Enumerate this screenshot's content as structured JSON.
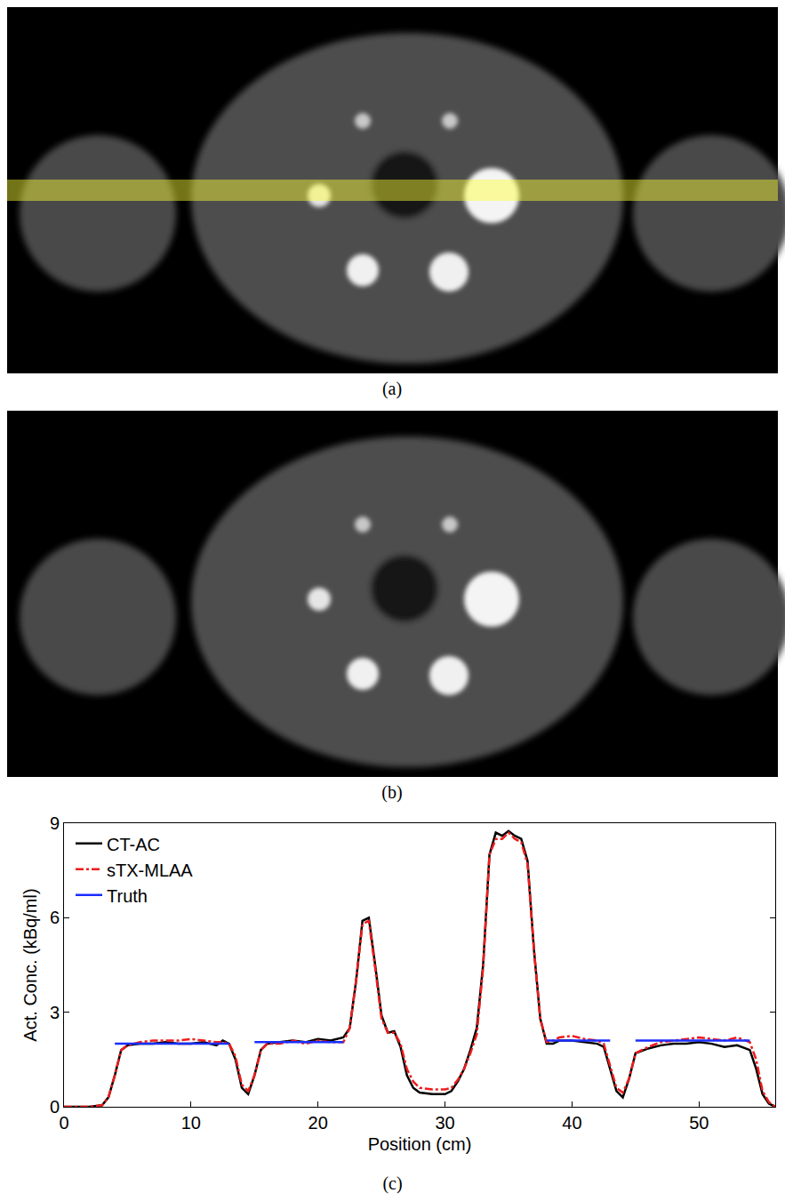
{
  "figure_labels": [
    "(a)",
    "(b)",
    "(c)"
  ],
  "chart_data": {
    "type": "line",
    "x_label": "Position (cm)",
    "y_label": "Act. Conc. (kBq/ml)",
    "xlim": [
      0,
      56
    ],
    "xticks": [
      0,
      10,
      20,
      30,
      40,
      50
    ],
    "ylim": [
      0,
      9
    ],
    "yticks": [
      0,
      3,
      6,
      9
    ],
    "grid": false,
    "legend": "upper left",
    "x": [
      0,
      1,
      2,
      3,
      3.5,
      4,
      4.5,
      5,
      6,
      7,
      8,
      9,
      10,
      11,
      12,
      12.5,
      13,
      13.5,
      14,
      14.5,
      15,
      15.5,
      16,
      17,
      18,
      19,
      20,
      21,
      22,
      22.5,
      23,
      23.5,
      24,
      24.5,
      25,
      25.5,
      26,
      26.5,
      27,
      27.5,
      28,
      29,
      30,
      30.5,
      31,
      31.5,
      32,
      32.5,
      33,
      33.5,
      34,
      34.5,
      35,
      35.5,
      36,
      36.5,
      37,
      37.5,
      38,
      38.5,
      39,
      40,
      41,
      42,
      42.5,
      43,
      43.5,
      44,
      44.5,
      45,
      46,
      47,
      48,
      49,
      50,
      51,
      52,
      53,
      54,
      54.5,
      55,
      55.5,
      56
    ],
    "series": [
      {
        "name": "CT-AC",
        "color": "#000000",
        "line_style": "solid",
        "values": [
          0,
          0,
          0,
          0.05,
          0.3,
          1.0,
          1.8,
          1.95,
          2.0,
          2.0,
          2.05,
          2.0,
          2.0,
          2.05,
          1.95,
          2.1,
          2.0,
          1.5,
          0.6,
          0.4,
          1.0,
          1.8,
          2.0,
          2.05,
          2.1,
          2.05,
          2.15,
          2.1,
          2.2,
          2.5,
          4.0,
          5.9,
          6.0,
          4.5,
          2.9,
          2.35,
          2.4,
          1.9,
          1.0,
          0.6,
          0.45,
          0.4,
          0.4,
          0.5,
          0.8,
          1.2,
          1.8,
          2.5,
          4.5,
          8.0,
          8.7,
          8.6,
          8.75,
          8.6,
          8.5,
          7.8,
          5.0,
          2.8,
          2.0,
          2.0,
          2.1,
          2.1,
          2.05,
          2.0,
          1.9,
          1.2,
          0.5,
          0.3,
          0.9,
          1.7,
          1.85,
          1.95,
          2.0,
          2.0,
          2.05,
          2.0,
          1.9,
          1.95,
          1.8,
          1.2,
          0.4,
          0.1,
          0
        ]
      },
      {
        "name": "sTX-MLAA",
        "color": "#ee1c1c",
        "line_style": "dashdot",
        "values": [
          0,
          0,
          0,
          0.05,
          0.3,
          1.0,
          1.8,
          1.95,
          2.05,
          2.1,
          2.1,
          2.1,
          2.15,
          2.1,
          2.05,
          2.05,
          2.0,
          1.6,
          0.7,
          0.5,
          1.0,
          1.8,
          2.0,
          2.0,
          2.1,
          2.0,
          2.1,
          2.05,
          2.05,
          2.5,
          4.0,
          5.8,
          5.9,
          4.4,
          2.8,
          2.35,
          2.35,
          2.0,
          1.2,
          0.8,
          0.6,
          0.55,
          0.55,
          0.6,
          0.85,
          1.2,
          1.7,
          2.3,
          4.4,
          8.0,
          8.5,
          8.5,
          8.7,
          8.5,
          8.4,
          7.7,
          5.0,
          2.8,
          2.05,
          2.1,
          2.2,
          2.25,
          2.15,
          2.1,
          2.0,
          1.3,
          0.6,
          0.45,
          0.9,
          1.7,
          1.9,
          2.05,
          2.1,
          2.15,
          2.2,
          2.15,
          2.1,
          2.2,
          2.05,
          1.5,
          0.5,
          0.15,
          0
        ]
      },
      {
        "name": "Truth",
        "color": "#1a2eff",
        "line_style": "solid",
        "values": [
          null,
          null,
          null,
          null,
          null,
          2.0,
          2.0,
          2.0,
          2.0,
          2.0,
          2.0,
          2.0,
          2.0,
          2.0,
          2.0,
          2.0,
          2.0,
          null,
          null,
          null,
          2.05,
          2.05,
          2.05,
          2.05,
          2.05,
          2.05,
          2.05,
          2.05,
          2.05,
          null,
          null,
          null,
          null,
          null,
          null,
          null,
          null,
          null,
          null,
          null,
          null,
          null,
          null,
          null,
          null,
          null,
          null,
          null,
          null,
          null,
          null,
          null,
          null,
          null,
          null,
          null,
          null,
          null,
          2.1,
          2.1,
          2.1,
          2.1,
          2.1,
          2.1,
          2.1,
          2.1,
          null,
          null,
          null,
          2.1,
          2.1,
          2.1,
          2.1,
          2.1,
          2.1,
          2.1,
          2.1,
          2.1,
          2.1,
          null,
          null,
          null,
          null
        ]
      }
    ]
  }
}
